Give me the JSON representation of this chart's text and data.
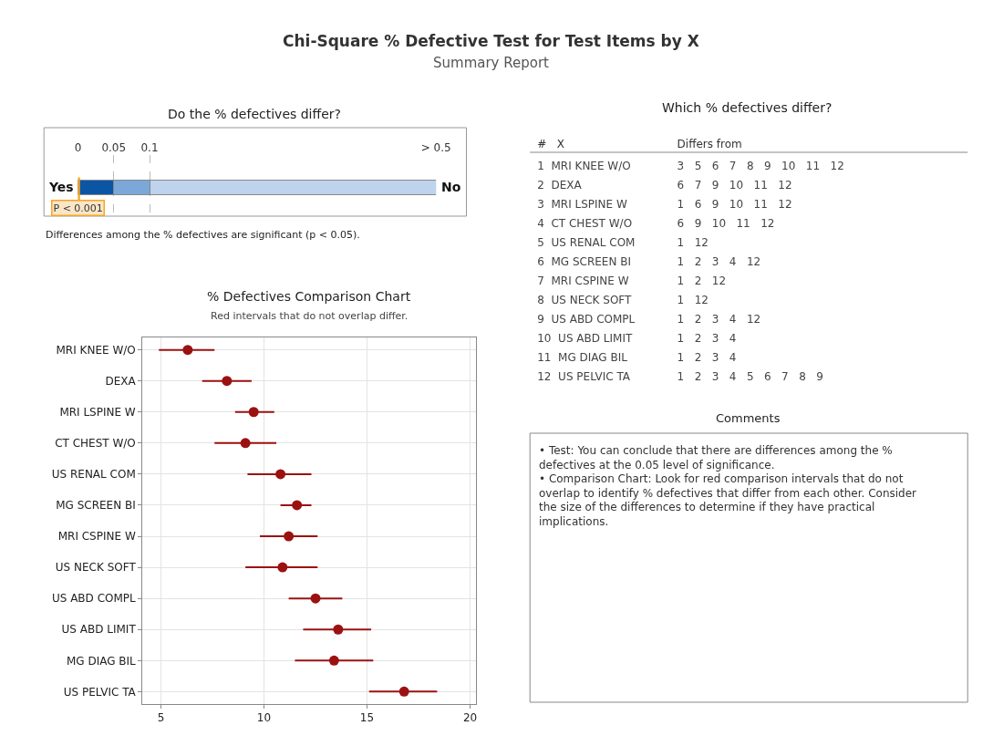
{
  "chart_data": [
    {
      "type": "other",
      "title": "Chi-Square % Defective Test for Test Items by X",
      "subtitle": "Summary Report"
    },
    {
      "type": "bar",
      "title": "Do the % defectives differ?",
      "annotations": [
        "Yes",
        "No",
        "Differences among the % defectives are significant (p < 0.05)."
      ],
      "orientation": "horizontal",
      "stacked": true,
      "categories": [
        null
      ],
      "xlim": [
        0,
        0.5
      ],
      "xticks": [
        0,
        0.05,
        0.1,
        {
          "value": 0.5,
          "label": "> 0.5"
        }
      ],
      "grid": "x",
      "tick_labels": "x",
      "series": [
        {
          "color": "#0b56a4",
          "values": [
            0.05
          ]
        },
        {
          "color": "#7ba7d9",
          "values": [
            0.05
          ]
        },
        {
          "color": "#bdd3ee",
          "values": [
            0.4
          ]
        }
      ],
      "ref_lines": [
        {
          "axis": "x",
          "value": 0.001,
          "label": "P < 0.001",
          "color": "#f5a623"
        }
      ]
    },
    {
      "type": "other",
      "title": "Which % defectives differ?",
      "categories": [
        "#   X",
        "Differs from"
      ],
      "cell_labels": [
        [
          "1  MRI KNEE W/O",
          "3   5   6   7   8   9   10   11   12"
        ],
        [
          "2  DEXA",
          "6   7   9   10   11   12"
        ],
        [
          "3  MRI LSPINE W",
          "1   6   9   10   11   12"
        ],
        [
          "4  CT CHEST W/O",
          "6   9   10   11   12"
        ],
        [
          "5  US RENAL COM",
          "1   12"
        ],
        [
          "6  MG SCREEN BI",
          "1   2   3   4   12"
        ],
        [
          "7  MRI CSPINE W",
          "1   2   12"
        ],
        [
          "8  US NECK SOFT",
          "1   12"
        ],
        [
          "9  US ABD COMPL",
          "1   2   3   4   12"
        ],
        [
          "10  US ABD LIMIT",
          "1   2   3   4"
        ],
        [
          "11  MG DIAG BIL",
          "1   2   3   4"
        ],
        [
          "12  US PELVIC TA",
          "1   2   3   4   5   6   7   8   9"
        ]
      ]
    },
    {
      "type": "scatter",
      "title": "% Defectives Comparison Chart",
      "subtitle": "Red intervals that do not overlap differ.",
      "orientation": "horizontal",
      "marker": "circle",
      "grid": true,
      "categories": [
        "MRI KNEE W/O",
        "DEXA",
        "MRI LSPINE W",
        "CT CHEST W/O",
        "US RENAL COM",
        "MG SCREEN BI",
        "MRI CSPINE W",
        "US NECK SOFT",
        "US ABD COMPL",
        "US ABD LIMIT",
        "MG DIAG BIL",
        "US PELVIC TA"
      ],
      "series": [
        {
          "color": "#9b1111",
          "values": [
            6.3,
            8.2,
            9.5,
            9.1,
            10.8,
            11.6,
            11.2,
            10.9,
            12.5,
            13.6,
            13.4,
            16.8
          ],
          "errors": [
            [
              4.9,
              7.6
            ],
            [
              7.0,
              9.4
            ],
            [
              8.6,
              10.5
            ],
            [
              7.6,
              10.6
            ],
            [
              9.2,
              12.3
            ],
            [
              10.8,
              12.3
            ],
            [
              9.8,
              12.6
            ],
            [
              9.1,
              12.6
            ],
            [
              11.2,
              13.8
            ],
            [
              11.9,
              15.2
            ],
            [
              11.5,
              15.3
            ],
            [
              15.1,
              18.4
            ]
          ]
        }
      ],
      "xlim": [
        4.1,
        20.3
      ],
      "xticks": [
        5,
        10,
        15,
        20
      ]
    },
    {
      "type": "other",
      "title": "Comments",
      "annotations": [
        "• Test: You can conclude that there are differences among the % defectives at the 0.05 level of significance.",
        "• Comparison Chart: Look for red comparison intervals that do not overlap to identify % defectives that differ from each other. Consider the size of the differences to determine if they have practical implications."
      ]
    }
  ]
}
